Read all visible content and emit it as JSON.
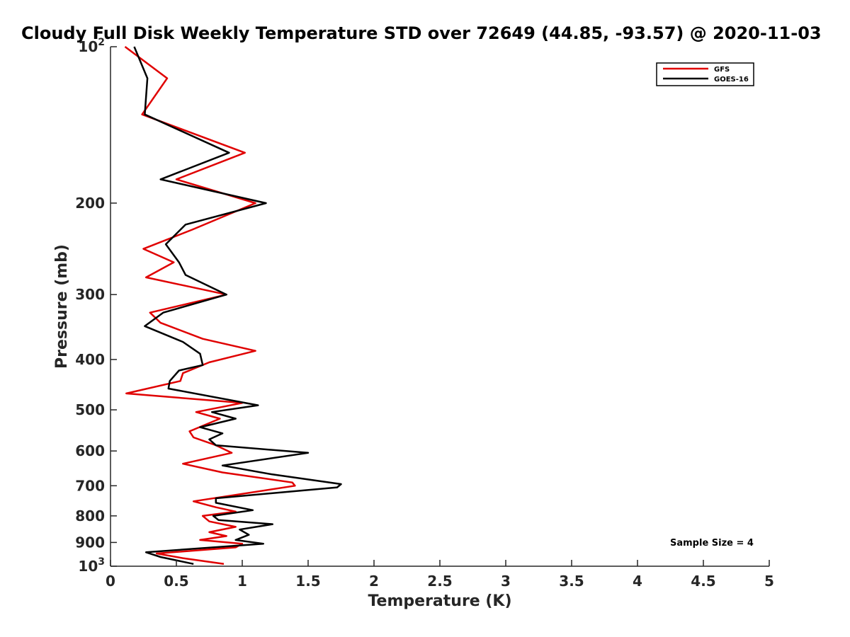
{
  "chart_data": {
    "type": "line",
    "title": "Cloudy Full Disk Weekly Temperature STD over 72649 (44.85, -93.57) @ 2020-11-03",
    "xlabel": "Temperature (K)",
    "ylabel": "Pressure (mb)",
    "xlim": [
      0,
      5
    ],
    "ylim": [
      100,
      1000
    ],
    "y_scale": "log",
    "y_reversed": true,
    "x_ticks": [
      "0",
      "0.5",
      "1",
      "1.5",
      "2",
      "2.5",
      "3",
      "3.5",
      "4",
      "4.5",
      "5"
    ],
    "y_ticks": [
      {
        "value": 100,
        "label": "10",
        "sup": "2"
      },
      {
        "value": 200,
        "label": "200"
      },
      {
        "value": 300,
        "label": "300"
      },
      {
        "value": 400,
        "label": "400"
      },
      {
        "value": 500,
        "label": "500"
      },
      {
        "value": 600,
        "label": "600"
      },
      {
        "value": 700,
        "label": "700"
      },
      {
        "value": 800,
        "label": "800"
      },
      {
        "value": 900,
        "label": "900"
      },
      {
        "value": 1000,
        "label": "10",
        "sup": "3"
      }
    ],
    "grid": false,
    "legend_position": "top-right",
    "annotation": "Sample Size = 4",
    "series": [
      {
        "name": "GFS",
        "color": "#e00000",
        "points": [
          [
            0.11,
            100
          ],
          [
            0.43,
            115
          ],
          [
            0.24,
            135
          ],
          [
            1.02,
            160
          ],
          [
            0.5,
            180
          ],
          [
            1.1,
            200
          ],
          [
            0.62,
            225
          ],
          [
            0.25,
            245
          ],
          [
            0.48,
            260
          ],
          [
            0.27,
            278
          ],
          [
            0.88,
            300
          ],
          [
            0.3,
            325
          ],
          [
            0.38,
            340
          ],
          [
            0.7,
            365
          ],
          [
            1.1,
            385
          ],
          [
            0.75,
            405
          ],
          [
            0.55,
            425
          ],
          [
            0.53,
            440
          ],
          [
            0.12,
            465
          ],
          [
            1.0,
            485
          ],
          [
            0.65,
            505
          ],
          [
            0.83,
            520
          ],
          [
            0.6,
            550
          ],
          [
            0.63,
            565
          ],
          [
            0.8,
            585
          ],
          [
            0.92,
            605
          ],
          [
            0.55,
            635
          ],
          [
            0.85,
            660
          ],
          [
            1.38,
            690
          ],
          [
            1.4,
            700
          ],
          [
            0.63,
            750
          ],
          [
            0.8,
            770
          ],
          [
            0.95,
            785
          ],
          [
            0.7,
            800
          ],
          [
            0.75,
            820
          ],
          [
            0.95,
            840
          ],
          [
            0.75,
            860
          ],
          [
            0.88,
            875
          ],
          [
            0.68,
            890
          ],
          [
            1.0,
            905
          ],
          [
            0.95,
            920
          ],
          [
            0.35,
            945
          ],
          [
            0.55,
            965
          ],
          [
            0.86,
            990
          ]
        ]
      },
      {
        "name": "GOES-16",
        "color": "#000000",
        "points": [
          [
            0.18,
            100
          ],
          [
            0.28,
            115
          ],
          [
            0.26,
            135
          ],
          [
            0.9,
            160
          ],
          [
            0.38,
            180
          ],
          [
            1.18,
            200
          ],
          [
            0.57,
            220
          ],
          [
            0.42,
            240
          ],
          [
            0.52,
            260
          ],
          [
            0.57,
            275
          ],
          [
            0.88,
            300
          ],
          [
            0.4,
            325
          ],
          [
            0.26,
            345
          ],
          [
            0.55,
            370
          ],
          [
            0.68,
            390
          ],
          [
            0.7,
            410
          ],
          [
            0.52,
            420
          ],
          [
            0.45,
            440
          ],
          [
            0.44,
            455
          ],
          [
            1.12,
            490
          ],
          [
            0.77,
            505
          ],
          [
            0.95,
            520
          ],
          [
            0.68,
            540
          ],
          [
            0.85,
            555
          ],
          [
            0.75,
            570
          ],
          [
            0.8,
            585
          ],
          [
            1.5,
            605
          ],
          [
            0.85,
            640
          ],
          [
            1.22,
            665
          ],
          [
            1.75,
            695
          ],
          [
            1.72,
            705
          ],
          [
            0.8,
            740
          ],
          [
            0.8,
            755
          ],
          [
            1.08,
            780
          ],
          [
            0.78,
            800
          ],
          [
            0.82,
            815
          ],
          [
            1.23,
            830
          ],
          [
            0.98,
            850
          ],
          [
            1.05,
            870
          ],
          [
            0.95,
            890
          ],
          [
            1.16,
            905
          ],
          [
            0.27,
            940
          ],
          [
            0.38,
            960
          ],
          [
            0.63,
            990
          ]
        ]
      }
    ]
  }
}
